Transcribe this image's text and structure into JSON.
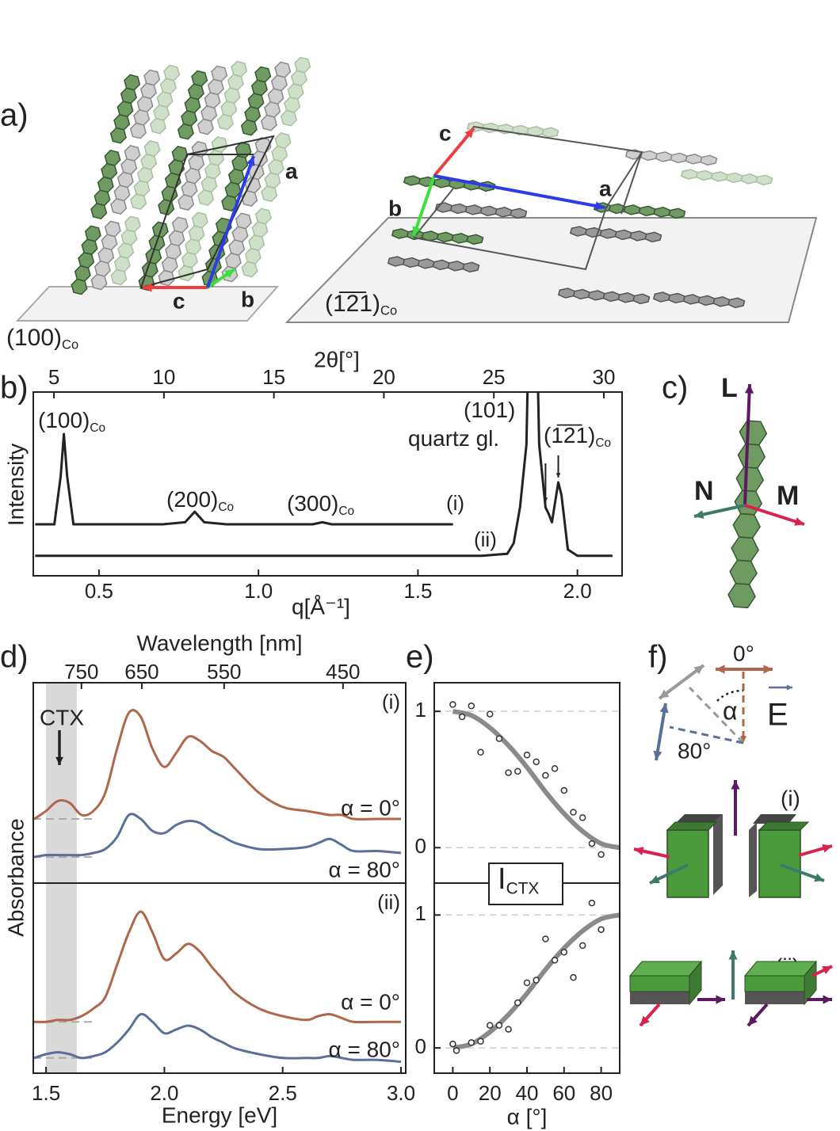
{
  "panels": [
    "a)",
    "b)",
    "c)",
    "d)",
    "e)",
    "f)"
  ],
  "panel_a": {
    "left_labels": [
      "a",
      "b",
      "c"
    ],
    "right_labels": [
      "a",
      "b",
      "c"
    ],
    "left_plane": {
      "text": "(100)",
      "sub": "Co"
    },
    "right_plane": {
      "text": "(1̅2̅1)",
      "sub": "Co"
    }
  },
  "panel_c": {
    "labels": [
      "L",
      "N",
      "M"
    ]
  },
  "panel_f": {
    "angles": [
      "0°",
      "80°"
    ],
    "alpha": "α",
    "field": "E",
    "cases": [
      "(i)",
      "(ii)"
    ]
  },
  "chart_data": [
    {
      "type": "line",
      "xlabel": "q[Å⁻¹]",
      "x2label": "2θ[°]",
      "ylabel": "Intensity",
      "xlim": [
        0.294,
        2.14
      ],
      "xticks": [
        0.5,
        {
          "value": 1,
          "label": "1.0"
        },
        1.5,
        {
          "value": 2,
          "label": "2.0"
        }
      ],
      "x2lim": [
        4.06,
        30.83
      ],
      "x2ticks": [
        5,
        10,
        15,
        20,
        25,
        30
      ],
      "ylim": [
        0.125,
        1
      ],
      "series": [
        {
          "name": "(i)",
          "color": "#222",
          "x": [
            0.3,
            0.36,
            0.38,
            0.39,
            0.4,
            0.42,
            0.5,
            0.7,
            0.77,
            0.8,
            0.83,
            0.9,
            1.1,
            1.17,
            1.2,
            1.23,
            1.4,
            1.61
          ],
          "values": [
            0.37,
            0.37,
            0.6,
            0.8,
            0.6,
            0.37,
            0.37,
            0.37,
            0.38,
            0.43,
            0.38,
            0.37,
            0.37,
            0.37,
            0.38,
            0.37,
            0.37,
            0.37
          ]
        },
        {
          "name": "(ii)",
          "color": "#222",
          "x": [
            0.3,
            1.7,
            1.78,
            1.8,
            1.82,
            1.84,
            1.85,
            1.87,
            1.88,
            1.9,
            1.91,
            1.92,
            1.94,
            1.95,
            1.97,
            2.0,
            2.11
          ],
          "values": [
            0.22,
            0.22,
            0.23,
            0.28,
            0.45,
            0.75,
            1.5,
            1.5,
            0.75,
            0.45,
            0.42,
            0.38,
            0.57,
            0.51,
            0.25,
            0.22,
            0.22
          ]
        }
      ],
      "annotations": [
        {
          "text": "(100)",
          "sub": "Co"
        },
        {
          "text": "(200)",
          "sub": "Co"
        },
        {
          "text": "(300)",
          "sub": "Co"
        },
        {
          "text": "(101)"
        },
        {
          "text": "quartz gl."
        },
        {
          "text": "(1̅2̅1)",
          "sub": "Co"
        }
      ]
    },
    {
      "type": "line",
      "x2label": "Wavelength [nm]",
      "ylabel": "Absorbance",
      "panel": "(i)",
      "annotation": "CTX",
      "xlim": [
        1.446,
        3.02
      ],
      "x2lim": [
        855,
        410.6
      ],
      "x2scale": "reciprocal",
      "x2ticks": [
        750,
        650,
        550,
        450
      ],
      "ylim": [
        0,
        1
      ],
      "band": [
        1.5,
        1.63
      ],
      "x": [
        1.45,
        1.5,
        1.55,
        1.6,
        1.65,
        1.7,
        1.75,
        1.8,
        1.85,
        1.9,
        1.95,
        2.0,
        2.05,
        2.1,
        2.15,
        2.2,
        2.25,
        2.3,
        2.4,
        2.5,
        2.6,
        2.65,
        2.7,
        2.75,
        2.8,
        2.9,
        3.0
      ],
      "series": [
        {
          "name": "α = 0°",
          "color": "#b0664a",
          "values": [
            0.32,
            0.36,
            0.41,
            0.4,
            0.34,
            0.36,
            0.45,
            0.67,
            0.85,
            0.83,
            0.67,
            0.58,
            0.65,
            0.73,
            0.71,
            0.66,
            0.63,
            0.57,
            0.45,
            0.38,
            0.36,
            0.35,
            0.34,
            0.34,
            0.32,
            0.32,
            0.32
          ]
        },
        {
          "name": "α = 80°",
          "color": "#5a6f99",
          "values": [
            0.13,
            0.14,
            0.14,
            0.14,
            0.14,
            0.15,
            0.17,
            0.23,
            0.34,
            0.32,
            0.26,
            0.25,
            0.29,
            0.31,
            0.3,
            0.26,
            0.23,
            0.2,
            0.17,
            0.17,
            0.18,
            0.2,
            0.22,
            0.19,
            0.16,
            0.16,
            0.15
          ]
        }
      ]
    },
    {
      "type": "line",
      "xlabel": "Energy [eV]",
      "panel": "(ii)",
      "xlim": [
        1.446,
        3.02
      ],
      "xticks": [
        1.5,
        {
          "value": 2,
          "label": "2.0"
        },
        2.5,
        {
          "value": 3,
          "label": "3.0"
        }
      ],
      "ylim": [
        0,
        1
      ],
      "band": [
        1.5,
        1.63
      ],
      "x": [
        1.45,
        1.5,
        1.55,
        1.6,
        1.65,
        1.7,
        1.75,
        1.8,
        1.85,
        1.9,
        1.95,
        2.0,
        2.05,
        2.1,
        2.15,
        2.2,
        2.25,
        2.3,
        2.4,
        2.5,
        2.6,
        2.65,
        2.7,
        2.75,
        2.8,
        2.9,
        3.0
      ],
      "series": [
        {
          "name": "α = 0°",
          "color": "#b0664a",
          "values": [
            0.27,
            0.27,
            0.28,
            0.28,
            0.3,
            0.34,
            0.4,
            0.57,
            0.74,
            0.85,
            0.74,
            0.6,
            0.63,
            0.68,
            0.64,
            0.56,
            0.49,
            0.42,
            0.34,
            0.3,
            0.28,
            0.3,
            0.31,
            0.29,
            0.27,
            0.27,
            0.27
          ]
        },
        {
          "name": "α = 80°",
          "color": "#5a6f99",
          "values": [
            0.08,
            0.1,
            0.11,
            0.1,
            0.08,
            0.09,
            0.11,
            0.16,
            0.23,
            0.31,
            0.27,
            0.21,
            0.23,
            0.25,
            0.23,
            0.19,
            0.16,
            0.13,
            0.1,
            0.08,
            0.08,
            0.08,
            0.09,
            0.08,
            0.07,
            0.07,
            0.06
          ]
        }
      ]
    },
    {
      "type": "scatter",
      "xlim": [
        -10,
        90
      ],
      "ylim": [
        -0.26,
        1.21
      ],
      "yticks": [
        0,
        1
      ],
      "grid": true,
      "color": "#333",
      "x": [
        0,
        5,
        10,
        15,
        20,
        25,
        30,
        35,
        40,
        45,
        50,
        55,
        60,
        65,
        70,
        75,
        80
      ],
      "values": [
        1.05,
        0.96,
        1.04,
        0.7,
        0.98,
        0.8,
        0.55,
        0.56,
        0.68,
        0.63,
        0.53,
        0.58,
        0.42,
        0.26,
        0.22,
        0.03,
        -0.05
      ],
      "fit": {
        "color": "#8a8a8a",
        "x": [
          0,
          10,
          20,
          30,
          40,
          50,
          60,
          70,
          80,
          90
        ],
        "values": [
          1,
          0.97,
          0.88,
          0.75,
          0.59,
          0.41,
          0.25,
          0.12,
          0.03,
          0
        ]
      }
    },
    {
      "type": "scatter",
      "xlabel": "α [°]",
      "xlim": [
        -10,
        90
      ],
      "ylim": [
        -0.19,
        1.24
      ],
      "yticks": [
        0,
        1
      ],
      "grid": true,
      "color": "#333",
      "xticks": [
        0,
        20,
        40,
        60,
        80
      ],
      "xtick_colors": [
        "#b0664a",
        "#333",
        "#333",
        "#333",
        "#5a6f99"
      ],
      "annotation": {
        "text": "I",
        "sub": "CTX"
      },
      "x": [
        0,
        2,
        10,
        15,
        20,
        25,
        30,
        35,
        40,
        45,
        50,
        55,
        60,
        65,
        70,
        75,
        80
      ],
      "values": [
        0.03,
        -0.02,
        0.04,
        0.05,
        0.17,
        0.17,
        0.14,
        0.34,
        0.49,
        0.51,
        0.82,
        0.66,
        0.72,
        0.53,
        0.77,
        1.09,
        0.89
      ],
      "fit": {
        "color": "#8a8a8a",
        "x": [
          0,
          10,
          20,
          30,
          40,
          50,
          60,
          70,
          80,
          90
        ],
        "values": [
          0,
          0.03,
          0.12,
          0.25,
          0.41,
          0.59,
          0.75,
          0.88,
          0.97,
          1
        ]
      }
    }
  ]
}
